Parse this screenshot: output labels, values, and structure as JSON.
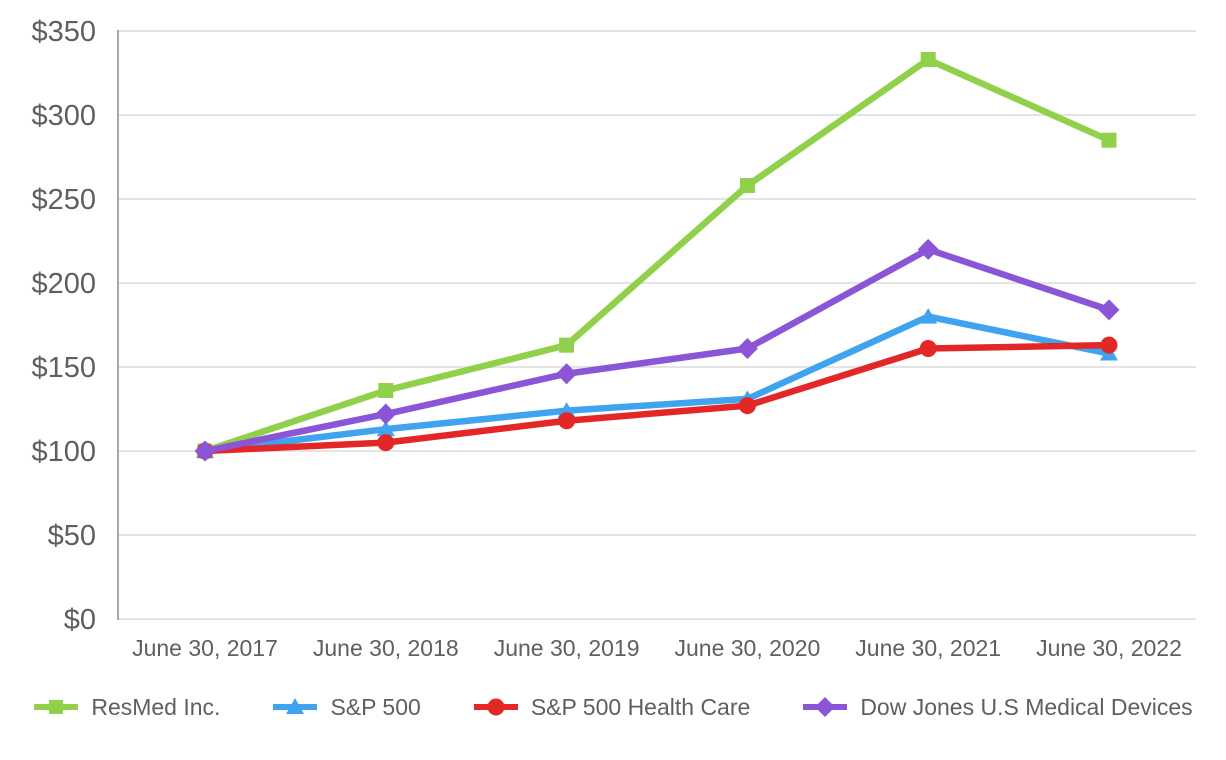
{
  "chart_data": {
    "type": "line",
    "title": "",
    "xlabel": "",
    "ylabel": "",
    "categories": [
      "June 30, 2017",
      "June 30, 2018",
      "June 30, 2019",
      "June 30, 2020",
      "June 30, 2021",
      "June 30, 2022"
    ],
    "series": [
      {
        "name": "ResMed Inc.",
        "marker": "square",
        "color": "#90D04A",
        "values": [
          100,
          136,
          163,
          258,
          333,
          285
        ]
      },
      {
        "name": "S&P 500",
        "marker": "triangle",
        "color": "#3FA3EF",
        "values": [
          100,
          113,
          124,
          131,
          180,
          158
        ]
      },
      {
        "name": "S&P 500 Health Care",
        "marker": "circle",
        "color": "#E32726",
        "values": [
          100,
          105,
          118,
          127,
          161,
          163
        ]
      },
      {
        "name": "Dow Jones U.S Medical Devices",
        "marker": "diamond",
        "color": "#8A55D7",
        "values": [
          100,
          122,
          146,
          161,
          220,
          184
        ]
      }
    ],
    "ylim": [
      0,
      350
    ],
    "y_tick_step": 50,
    "y_tick_labels": [
      "$0",
      "$50",
      "$100",
      "$150",
      "$200",
      "$250",
      "$300",
      "$350"
    ],
    "grid": true,
    "legend_position": "bottom",
    "colors": {
      "grid": "#e4e4e4",
      "axis": "#a8a8a8",
      "tick_label": "#5f5f5f",
      "background": "#ffffff"
    }
  }
}
